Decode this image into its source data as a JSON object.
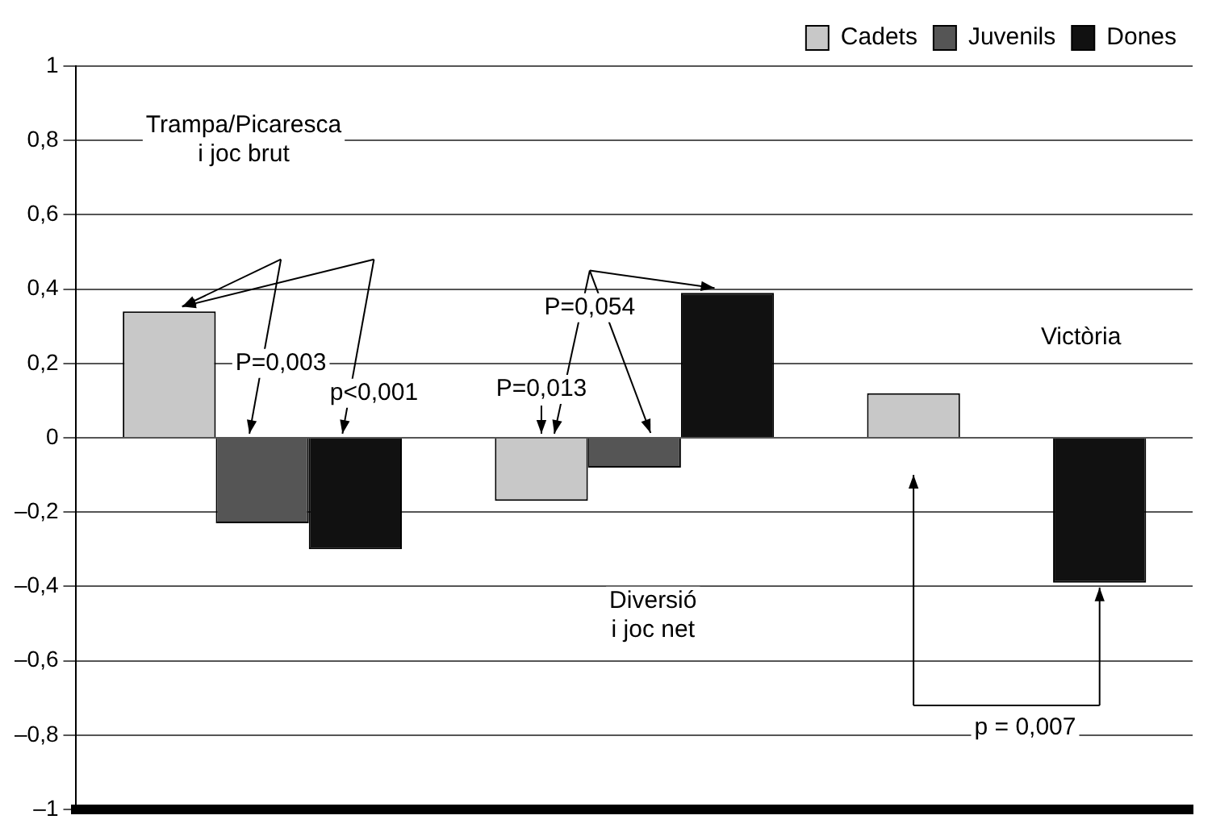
{
  "chart_data": {
    "type": "bar",
    "categories": [
      null,
      null,
      null
    ],
    "series": [
      {
        "name": "Cadets",
        "color": "#c8c8c8",
        "values": [
          0.34,
          -0.17,
          0.12
        ]
      },
      {
        "name": "Juvenils",
        "color": "#555555",
        "values": [
          -0.23,
          -0.08,
          0
        ]
      },
      {
        "name": "Dones",
        "color": "#111111",
        "values": [
          -0.3,
          0.39,
          -0.39
        ]
      }
    ],
    "ylim": [
      -1,
      1
    ],
    "yticks": [
      {
        "value": -1,
        "label": "–1"
      },
      {
        "value": -0.8,
        "label": "–0,8"
      },
      {
        "value": -0.6,
        "label": "–0,6"
      },
      {
        "value": -0.4,
        "label": "–0,4"
      },
      {
        "value": -0.2,
        "label": "–0,2"
      },
      0,
      {
        "value": 0.2,
        "label": "0,2"
      },
      {
        "value": 0.4,
        "label": "0,4"
      },
      {
        "value": 0.6,
        "label": "0,6"
      },
      {
        "value": 0.8,
        "label": "0,8"
      },
      1
    ],
    "grid": "y",
    "legend": "top right",
    "tick_labels": "y",
    "annotations": [
      "Trampa/Picaresca\ni joc brut",
      "Diversió\ni joc net",
      "Victòria",
      "P=0,003",
      "p<0,001",
      "P=0,054",
      "P=0,013",
      "p = 0,007"
    ]
  }
}
